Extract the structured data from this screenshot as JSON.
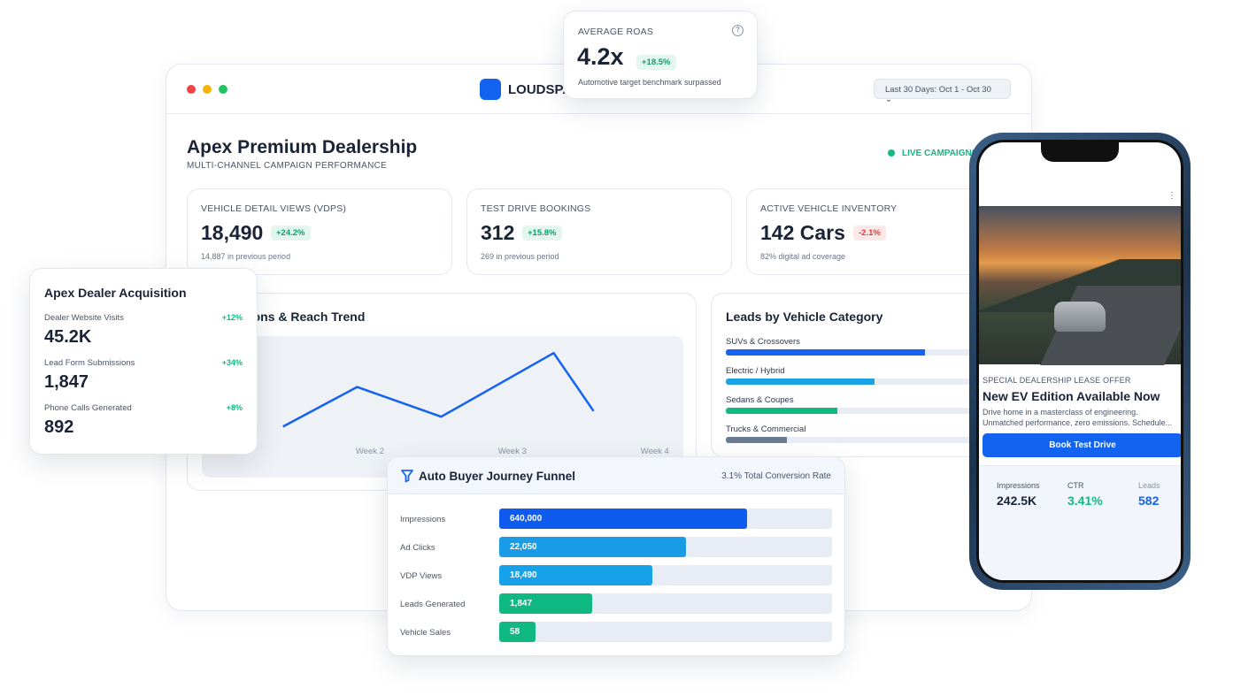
{
  "roas_card": {
    "title": "AVERAGE ROAS",
    "value": "4.2x",
    "change": "+18.5%",
    "note": "Automotive target benchmark surpassed"
  },
  "window": {
    "brand": "LOUDSPA",
    "date_range": "Last 30 Days: Oct 1 - Oct 30",
    "title": "Apex Premium Dealership",
    "subtitle": "MULTI-CHANNEL CAMPAIGN PERFORMANCE",
    "status": "LIVE CAMPAIGNS"
  },
  "kpis": [
    {
      "label": "VEHICLE DETAIL VIEWS (VDPS)",
      "value": "18,490",
      "change": "+24.2%",
      "trend": "up",
      "note": "14,887 in previous period"
    },
    {
      "label": "TEST DRIVE BOOKINGS",
      "value": "312",
      "change": "+15.8%",
      "trend": "up",
      "note": "269 in previous period"
    },
    {
      "label": "ACTIVE VEHICLE INVENTORY",
      "value": "142 Cars",
      "change": "-2.1%",
      "trend": "down",
      "note": "82% digital ad coverage"
    }
  ],
  "trend_chart": {
    "type": "line",
    "title": "Impressions & Reach Trend",
    "color": "#1463f0",
    "x": [
      1.39,
      1.91,
      2.5,
      3.29,
      3.57
    ],
    "values": [
      36,
      64,
      43,
      88,
      47
    ],
    "xlim": [
      0.82,
      4.2
    ],
    "ylim": [
      0,
      100
    ],
    "xticks": [
      {
        "value": 2,
        "label": "Week 2"
      },
      {
        "value": 3,
        "label": "Week 3"
      },
      {
        "value": 4,
        "label": "Week 4"
      }
    ]
  },
  "leads": {
    "title": "Leads by Vehicle Category",
    "categories": [
      {
        "name": "SUVs & Crossovers",
        "percent": 75,
        "color": "#1663f0"
      },
      {
        "name": "Electric / Hybrid",
        "percent": 56,
        "color": "#1ba2e4"
      },
      {
        "name": "Sedans & Coupes",
        "percent": 42,
        "color": "#10b981"
      },
      {
        "name": "Trucks & Commercial",
        "percent": 23,
        "color": "#6b7a90"
      }
    ]
  },
  "acquisition": {
    "title": "Apex Dealer Acquisition",
    "rows": [
      {
        "label": "Dealer Website Visits",
        "value": "45.2K",
        "change": "+12%"
      },
      {
        "label": "Lead Form Submissions",
        "value": "1,847",
        "change": "+34%"
      },
      {
        "label": "Phone Calls Generated",
        "value": "892",
        "change": "+8%"
      }
    ]
  },
  "funnel": {
    "title": "Auto Buyer Journey Funnel",
    "rate": "3.1% Total Conversion Rate",
    "stages": [
      {
        "name": "Impressions",
        "label": "640,000",
        "percent": 74.5,
        "color": "#0f5bf0"
      },
      {
        "name": "Ad Clicks",
        "label": "22,050",
        "percent": 56,
        "color": "#1a9be6"
      },
      {
        "name": "VDP Views",
        "label": "18,490",
        "percent": 46,
        "color": "#16a1e8"
      },
      {
        "name": "Leads Generated",
        "label": "1,847",
        "percent": 28,
        "color": "#10b981"
      },
      {
        "name": "Vehicle Sales",
        "label": "58",
        "percent": 11,
        "color": "#10b981"
      }
    ]
  },
  "phone": {
    "eyebrow": "SPECIAL DEALERSHIP LEASE OFFER",
    "headline": "New EV Edition Available Now",
    "body": "Drive home in a masterclass of engineering. Unmatched performance, zero emissions. Schedule...",
    "button": "Book Test Drive",
    "stats": [
      {
        "label": "Impressions",
        "value": "242.5K"
      },
      {
        "label": "CTR",
        "value": "3.41%"
      },
      {
        "label": "Leads",
        "value": "582"
      }
    ]
  }
}
